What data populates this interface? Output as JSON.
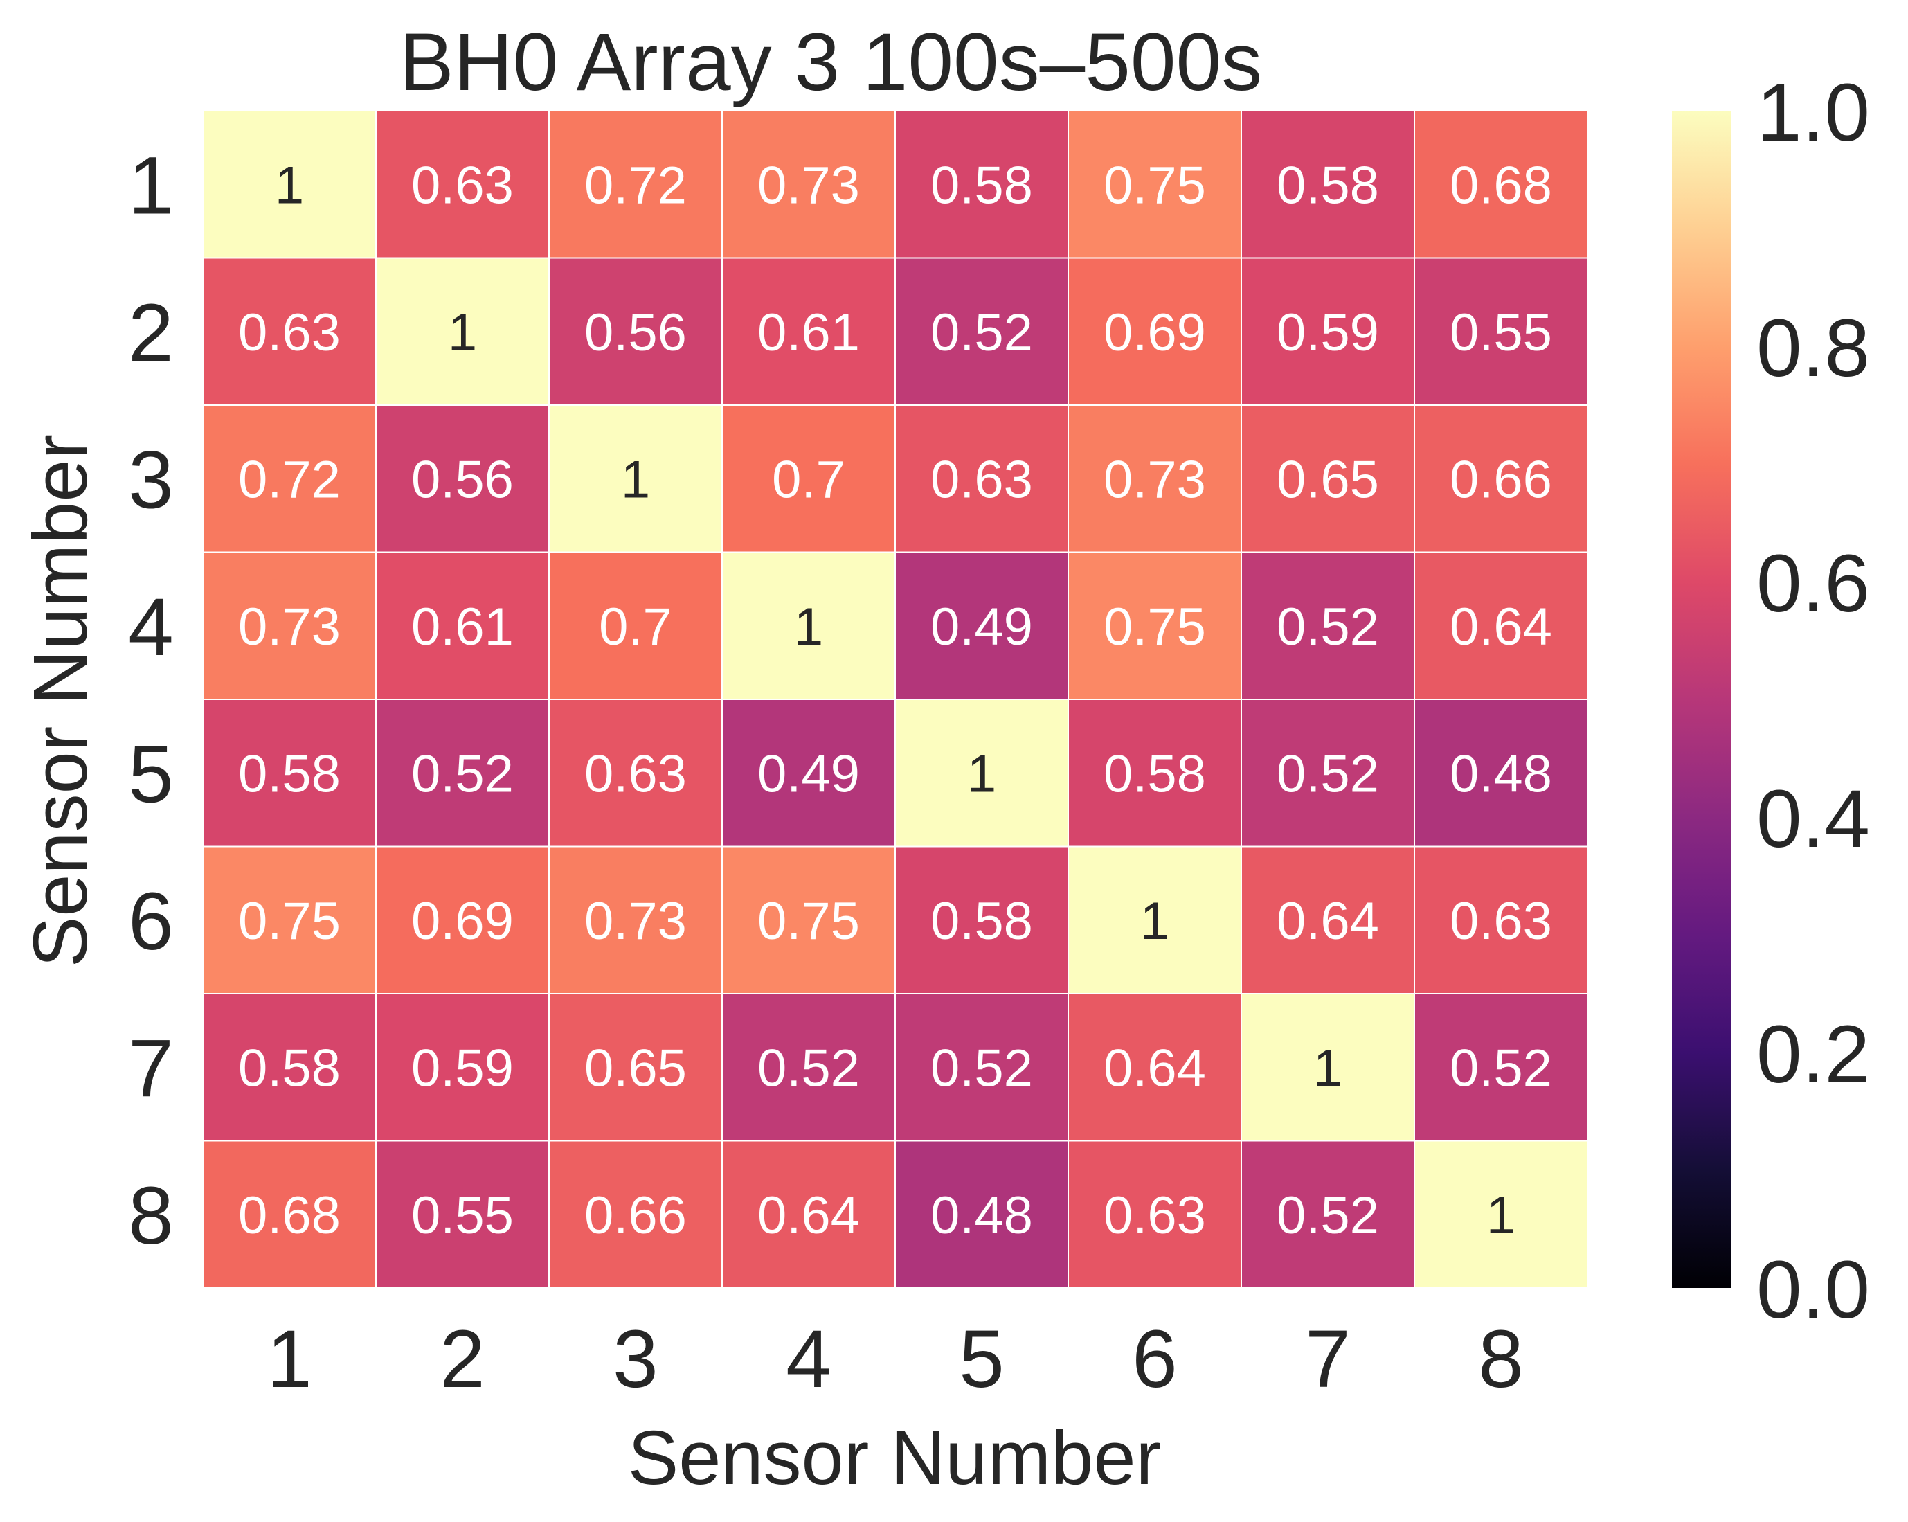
{
  "chart_data": {
    "type": "heatmap",
    "title": "BH0 Array 3 100s–500s",
    "xlabel": "Sensor Number",
    "ylabel": "Sensor Number",
    "x_categories": [
      "1",
      "2",
      "3",
      "4",
      "5",
      "6",
      "7",
      "8"
    ],
    "y_categories": [
      "1",
      "2",
      "3",
      "4",
      "5",
      "6",
      "7",
      "8"
    ],
    "values": [
      [
        1,
        0.63,
        0.72,
        0.73,
        0.58,
        0.75,
        0.58,
        0.68
      ],
      [
        0.63,
        1,
        0.56,
        0.61,
        0.52,
        0.69,
        0.59,
        0.55
      ],
      [
        0.72,
        0.56,
        1,
        0.7,
        0.63,
        0.73,
        0.65,
        0.66
      ],
      [
        0.73,
        0.61,
        0.7,
        1,
        0.49,
        0.75,
        0.52,
        0.64
      ],
      [
        0.58,
        0.52,
        0.63,
        0.49,
        1,
        0.58,
        0.52,
        0.48
      ],
      [
        0.75,
        0.69,
        0.73,
        0.75,
        0.58,
        1,
        0.64,
        0.63
      ],
      [
        0.58,
        0.59,
        0.65,
        0.52,
        0.52,
        0.64,
        1,
        0.52
      ],
      [
        0.68,
        0.55,
        0.66,
        0.64,
        0.48,
        0.63,
        0.52,
        1
      ]
    ],
    "annotations": [
      [
        "1",
        "0.63",
        "0.72",
        "0.73",
        "0.58",
        "0.75",
        "0.58",
        "0.68"
      ],
      [
        "0.63",
        "1",
        "0.56",
        "0.61",
        "0.52",
        "0.69",
        "0.59",
        "0.55"
      ],
      [
        "0.72",
        "0.56",
        "1",
        "0.7",
        "0.63",
        "0.73",
        "0.65",
        "0.66"
      ],
      [
        "0.73",
        "0.61",
        "0.7",
        "1",
        "0.49",
        "0.75",
        "0.52",
        "0.64"
      ],
      [
        "0.58",
        "0.52",
        "0.63",
        "0.49",
        "1",
        "0.58",
        "0.52",
        "0.48"
      ],
      [
        "0.75",
        "0.69",
        "0.73",
        "0.75",
        "0.58",
        "1",
        "0.64",
        "0.63"
      ],
      [
        "0.58",
        "0.59",
        "0.65",
        "0.52",
        "0.52",
        "0.64",
        "1",
        "0.52"
      ],
      [
        "0.68",
        "0.55",
        "0.66",
        "0.64",
        "0.48",
        "0.63",
        "0.52",
        "1"
      ]
    ],
    "colormap": "magma",
    "vmin": 0.0,
    "vmax": 1.0,
    "colorbar": {
      "ticks": [
        0.0,
        0.2,
        0.4,
        0.6,
        0.8,
        1.0
      ],
      "tick_labels": [
        "0.0",
        "0.2",
        "0.4",
        "0.6",
        "0.8",
        "1.0"
      ],
      "position": "right"
    },
    "grid": false,
    "cell_border_color": "#ffffff",
    "text_dark_color": "#262626",
    "text_light_color": "#ffffff"
  }
}
